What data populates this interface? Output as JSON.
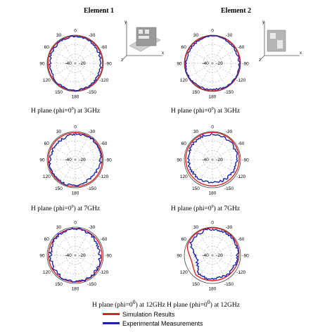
{
  "titles": {
    "element1": "Element 1",
    "element2": "Element 2"
  },
  "captions": {
    "row1_left": "H plane (phi=0",
    "row1_left_sup": "0",
    "row1_left_end": ") at 3GHz",
    "row1_right": "H plane (phi=0",
    "row1_right_sup": "0",
    "row1_right_end": ") at 3GHz",
    "row2_left": "H plane (phi=0",
    "row2_left_sup": "0",
    "row2_left_end": ") at 7GHz",
    "row2_right": "H plane (phi=0",
    "row2_right_sup": "0",
    "row2_right_end": ") at 7GHz",
    "row3": "H plane (phi=0",
    "row3_sup": "0",
    "row3_mid": ") at 12GHz H plane (phi=0",
    "row3_sup2": "0",
    "row3_end": ") at 12GHz"
  },
  "legend": {
    "simulation": "Simulation Results",
    "experimental": "Experimental Measurements",
    "simulation_color": "#e02020",
    "experimental_color": "#1a23a8"
  },
  "polar_ticks": {
    "angles": [
      "0",
      "30",
      "60",
      "90",
      "120",
      "150",
      "180",
      "-150",
      "-120",
      "-90",
      "-60",
      "-30"
    ],
    "rings": [
      "-40",
      "-20"
    ]
  },
  "inset_axes": {
    "y": "y",
    "x": "x",
    "z": "z"
  },
  "chart_data": [
    {
      "type": "polar",
      "element": "Element 1",
      "frequency": "3GHz",
      "series": [
        {
          "name": "Simulation Results",
          "shape": "near-omni"
        },
        {
          "name": "Experimental Measurements",
          "shape": "near-omni, ripple"
        }
      ],
      "radial_ticks": [
        -40,
        -20,
        0
      ]
    },
    {
      "type": "polar",
      "element": "Element 2",
      "frequency": "3GHz",
      "series": [
        {
          "name": "Simulation Results",
          "shape": "near-omni"
        },
        {
          "name": "Experimental Measurements",
          "shape": "near-omni, ripple"
        }
      ],
      "radial_ticks": [
        -40,
        -20,
        0
      ]
    },
    {
      "type": "polar",
      "element": "Element 1",
      "frequency": "7GHz",
      "series": [
        {
          "name": "Simulation Results",
          "shape": "near-omni"
        },
        {
          "name": "Experimental Measurements",
          "shape": "near-omni, ripple"
        }
      ],
      "radial_ticks": [
        -40,
        -20,
        0
      ]
    },
    {
      "type": "polar",
      "element": "Element 2",
      "frequency": "7GHz",
      "series": [
        {
          "name": "Simulation Results",
          "shape": "near-omni"
        },
        {
          "name": "Experimental Measurements",
          "shape": "near-omni, ripple"
        }
      ],
      "radial_ticks": [
        -40,
        -20,
        0
      ]
    },
    {
      "type": "polar",
      "element": "Element 1",
      "frequency": "12GHz",
      "series": [
        {
          "name": "Simulation Results",
          "shape": "near-omni"
        },
        {
          "name": "Experimental Measurements",
          "shape": "near-omni, ripple"
        }
      ],
      "radial_ticks": [
        -40,
        -20,
        0
      ]
    },
    {
      "type": "polar",
      "element": "Element 2",
      "frequency": "12GHz",
      "series": [
        {
          "name": "Simulation Results",
          "shape": "irregular, dip near 120-150"
        },
        {
          "name": "Experimental Measurements",
          "shape": "irregular, dip near 120-150"
        }
      ],
      "radial_ticks": [
        -40,
        -20,
        0
      ]
    }
  ]
}
